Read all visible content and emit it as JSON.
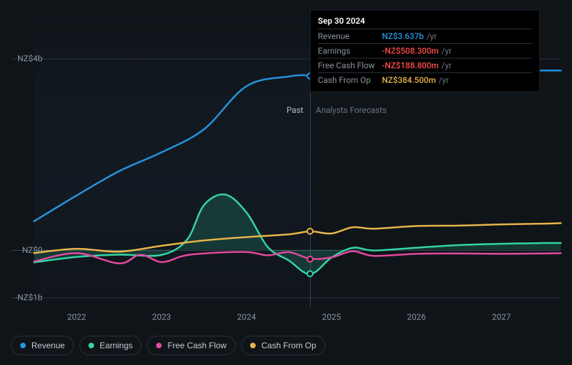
{
  "chart": {
    "type": "line",
    "background_color": "#0f1419",
    "grid_color": "#2a3139",
    "grid_major_color": "#3a444f",
    "text_color": "#8a939e",
    "label_fontsize": 12,
    "y_axis": {
      "ticks": [
        {
          "value": 4000,
          "label": "NZ$4b"
        },
        {
          "value": 0,
          "label": "NZ$0"
        },
        {
          "value": -1000,
          "label": "-NZ$1b"
        }
      ],
      "min": -1200,
      "max": 5000
    },
    "x_axis": {
      "ticks": [
        "2022",
        "2023",
        "2024",
        "2025",
        "2026",
        "2027"
      ],
      "min": 2021.5,
      "max": 2027.7
    },
    "present_x": 2024.75,
    "labels": {
      "past": "Past",
      "forecast": "Analysts Forecasts"
    },
    "series": [
      {
        "key": "revenue",
        "label": "Revenue",
        "color": "#2394df",
        "line_width": 2.5,
        "fill_opacity": 0,
        "data": [
          [
            2021.5,
            596
          ],
          [
            2022.0,
            1134
          ],
          [
            2022.5,
            1641
          ],
          [
            2023.0,
            2036
          ],
          [
            2023.5,
            2518
          ],
          [
            2024.0,
            3419
          ],
          [
            2024.5,
            3620
          ],
          [
            2024.75,
            3637
          ],
          [
            2025.0,
            3530
          ],
          [
            2025.5,
            3604
          ],
          [
            2026.0,
            3714
          ],
          [
            2026.5,
            3745
          ],
          [
            2027.0,
            3745
          ],
          [
            2027.5,
            3745
          ],
          [
            2027.7,
            3745
          ]
        ]
      },
      {
        "key": "earnings",
        "label": "Earnings",
        "color": "#34d6a6",
        "line_width": 2.5,
        "fill_opacity": 0.18,
        "data": [
          [
            2021.5,
            -262
          ],
          [
            2022.0,
            -150
          ],
          [
            2022.5,
            -103
          ],
          [
            2023.0,
            -108
          ],
          [
            2023.3,
            212
          ],
          [
            2023.5,
            934
          ],
          [
            2023.75,
            1153
          ],
          [
            2024.0,
            778
          ],
          [
            2024.25,
            57
          ],
          [
            2024.5,
            -227
          ],
          [
            2024.75,
            -508
          ],
          [
            2025.0,
            -164
          ],
          [
            2025.25,
            41
          ],
          [
            2025.5,
            -15
          ],
          [
            2026.0,
            43
          ],
          [
            2026.5,
            98
          ],
          [
            2027.0,
            125
          ],
          [
            2027.5,
            140
          ],
          [
            2027.7,
            140
          ]
        ]
      },
      {
        "key": "fcf",
        "label": "Free Cash Flow",
        "color": "#e24aa0",
        "line_width": 2.5,
        "fill_opacity": 0,
        "data": [
          [
            2021.5,
            -244
          ],
          [
            2022.0,
            -70
          ],
          [
            2022.5,
            -285
          ],
          [
            2022.75,
            -104
          ],
          [
            2023.0,
            -259
          ],
          [
            2023.25,
            -131
          ],
          [
            2023.5,
            -77
          ],
          [
            2024.0,
            -49
          ],
          [
            2024.25,
            -116
          ],
          [
            2024.5,
            -49
          ],
          [
            2024.75,
            -189
          ],
          [
            2025.0,
            -159
          ],
          [
            2025.25,
            -31
          ],
          [
            2025.5,
            -128
          ],
          [
            2026.0,
            -85
          ],
          [
            2026.5,
            -77
          ],
          [
            2027.0,
            -85
          ],
          [
            2027.5,
            -77
          ],
          [
            2027.7,
            -72
          ]
        ]
      },
      {
        "key": "cfo",
        "label": "Cash From Op",
        "color": "#eab54a",
        "line_width": 2.5,
        "fill_opacity": 0,
        "data": [
          [
            2021.5,
            -70
          ],
          [
            2022.0,
            20
          ],
          [
            2022.5,
            -40
          ],
          [
            2023.0,
            83
          ],
          [
            2023.5,
            195
          ],
          [
            2024.0,
            265
          ],
          [
            2024.5,
            323
          ],
          [
            2024.75,
            385
          ],
          [
            2025.0,
            340
          ],
          [
            2025.25,
            470
          ],
          [
            2025.5,
            440
          ],
          [
            2026.0,
            495
          ],
          [
            2026.5,
            505
          ],
          [
            2027.0,
            530
          ],
          [
            2027.5,
            545
          ],
          [
            2027.7,
            555
          ]
        ]
      }
    ],
    "tooltip": {
      "title": "Sep 30 2024",
      "rows": [
        {
          "label": "Revenue",
          "value": "NZ$3.637b",
          "unit": "/yr",
          "color": "#2394df"
        },
        {
          "label": "Earnings",
          "value": "-NZ$508.300m",
          "unit": "/yr",
          "color": "#ff4d4d"
        },
        {
          "label": "Free Cash Flow",
          "value": "-NZ$188.800m",
          "unit": "/yr",
          "color": "#ff4d4d"
        },
        {
          "label": "Cash From Op",
          "value": "NZ$384.500m",
          "unit": "/yr",
          "color": "#eab54a"
        }
      ]
    },
    "markers_at_x": 2024.75,
    "legend": [
      {
        "label": "Revenue",
        "color": "#2394df"
      },
      {
        "label": "Earnings",
        "color": "#34d6a6"
      },
      {
        "label": "Free Cash Flow",
        "color": "#e24aa0"
      },
      {
        "label": "Cash From Op",
        "color": "#eab54a"
      }
    ]
  }
}
